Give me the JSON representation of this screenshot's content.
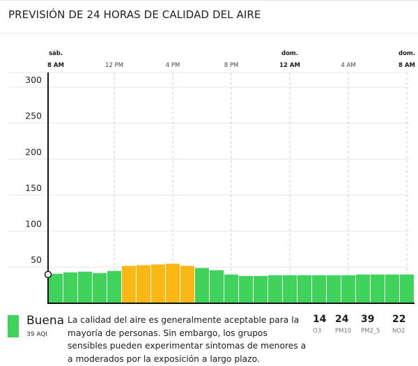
{
  "title": "PREVISIÓN DE 24 HORAS DE CALIDAD DEL AIRE",
  "chart_data": {
    "type": "bar",
    "ylim": [
      0,
      320
    ],
    "yticks": [
      50,
      100,
      150,
      200,
      250,
      300
    ],
    "xticks": [
      {
        "line1": "sáb.",
        "line2": "8 AM",
        "hour_index": 0,
        "bold": true
      },
      {
        "line1": "",
        "line2": "12 PM",
        "hour_index": 4,
        "bold": false
      },
      {
        "line1": "",
        "line2": "4 PM",
        "hour_index": 8,
        "bold": false
      },
      {
        "line1": "",
        "line2": "8 PM",
        "hour_index": 12,
        "bold": false
      },
      {
        "line1": "dom.",
        "line2": "12 AM",
        "hour_index": 16,
        "bold": true
      },
      {
        "line1": "",
        "line2": "4 AM",
        "hour_index": 20,
        "bold": false
      },
      {
        "line1": "dom.",
        "line2": "8 AM",
        "hour_index": 24,
        "bold": true
      }
    ],
    "values": [
      40,
      42,
      43,
      41,
      44,
      51,
      52,
      53,
      54,
      51,
      48,
      45,
      39,
      37,
      37,
      38,
      38,
      38,
      38,
      38,
      38,
      39,
      39,
      39,
      39
    ],
    "current_value": 39,
    "grid": true,
    "colors": {
      "good": "#40d35c",
      "moderate": "#fbb714",
      "good_threshold": 50
    }
  },
  "summary": {
    "category": "Buena",
    "aqi_label": "39 AQI",
    "description": "La calidad del aire es generalmente aceptable para la mayoría de personas. Sin embargo, los grupos sensibles pueden experimentar síntomas de menores a a moderados por la exposición a largo plazo.",
    "swatch_color": "#40d35c",
    "pollutants": [
      {
        "value": "14",
        "label": "O3"
      },
      {
        "value": "24",
        "label": "PM10"
      },
      {
        "value": "39",
        "label": "PM2_5"
      },
      {
        "value": "22",
        "label": "NO2"
      }
    ]
  }
}
